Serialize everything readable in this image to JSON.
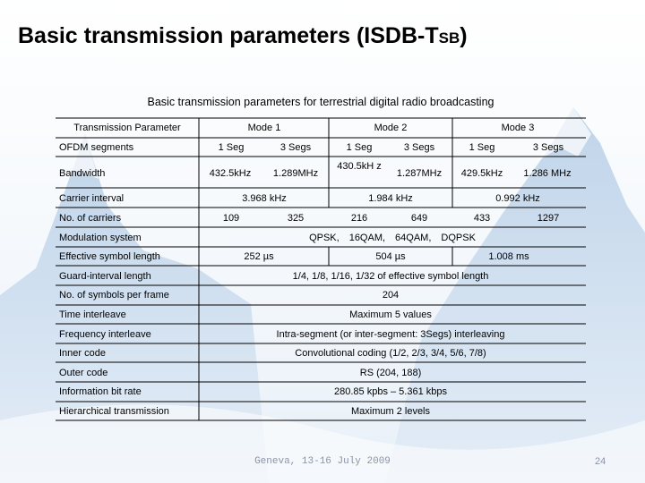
{
  "slide": {
    "title_main": "Basic transmission parameters (ISDB-T",
    "title_sub": "SB",
    "title_close": ")",
    "caption": "Basic transmission parameters for terrestrial digital radio broadcasting",
    "footer": "Geneva, 13-16 July 2009",
    "page_number": "24"
  },
  "table": {
    "header": {
      "parameter": "Transmission Parameter",
      "mode1": "Mode 1",
      "mode2": "Mode 2",
      "mode3": "Mode 3"
    },
    "ofdm": {
      "label": "OFDM segments",
      "values": [
        "1 Seg",
        "3 Segs",
        "1 Seg",
        "3 Segs",
        "1 Seg",
        "3 Segs"
      ]
    },
    "bandwidth": {
      "label": "Bandwidth",
      "values": [
        "432.5kHz",
        "1.289MHz",
        "430.5kH z",
        "1.287MHz",
        "429.5kHz",
        "1.286 MHz"
      ]
    },
    "carrier_interval": {
      "label": "Carrier interval",
      "values": [
        "3.968 kHz",
        "1.984 kHz",
        "0.992 kHz"
      ]
    },
    "num_carriers": {
      "label": "No. of carriers",
      "values": [
        "109",
        "325",
        "216",
        "649",
        "433",
        "1297"
      ]
    },
    "modulation": {
      "label": "Modulation system",
      "value": "QPSK,　16QAM,　64QAM,　DQPSK"
    },
    "effective_symbol": {
      "label": "Effective symbol length",
      "values": [
        "252 µs",
        "504 µs",
        "1.008 ms"
      ]
    },
    "guard_interval": {
      "label": "Guard-interval length",
      "value": "1/4, 1/8, 1/16, 1/32 of effective symbol length"
    },
    "symbols_per_frame": {
      "label": "No. of symbols per frame",
      "value": "204"
    },
    "time_interleave": {
      "label": "Time interleave",
      "value": "Maximum 5 values"
    },
    "freq_interleave": {
      "label": "Frequency interleave",
      "value": "Intra-segment (or inter-segment: 3Segs) interleaving"
    },
    "inner_code": {
      "label": "Inner code",
      "value": "Convolutional coding (1/2, 2/3, 3/4, 5/6, 7/8)"
    },
    "outer_code": {
      "label": "Outer code",
      "value": "RS (204, 188)"
    },
    "info_bitrate": {
      "label": "Information bit rate",
      "value": "280.85 kpbs – 5.361 kbps"
    },
    "hierarchical": {
      "label": "Hierarchical transmission",
      "value": "Maximum 2 levels"
    }
  },
  "colors": {
    "background_wash": "#c9dcf0",
    "line": "#000000",
    "footer_text": "#8a94a8"
  }
}
